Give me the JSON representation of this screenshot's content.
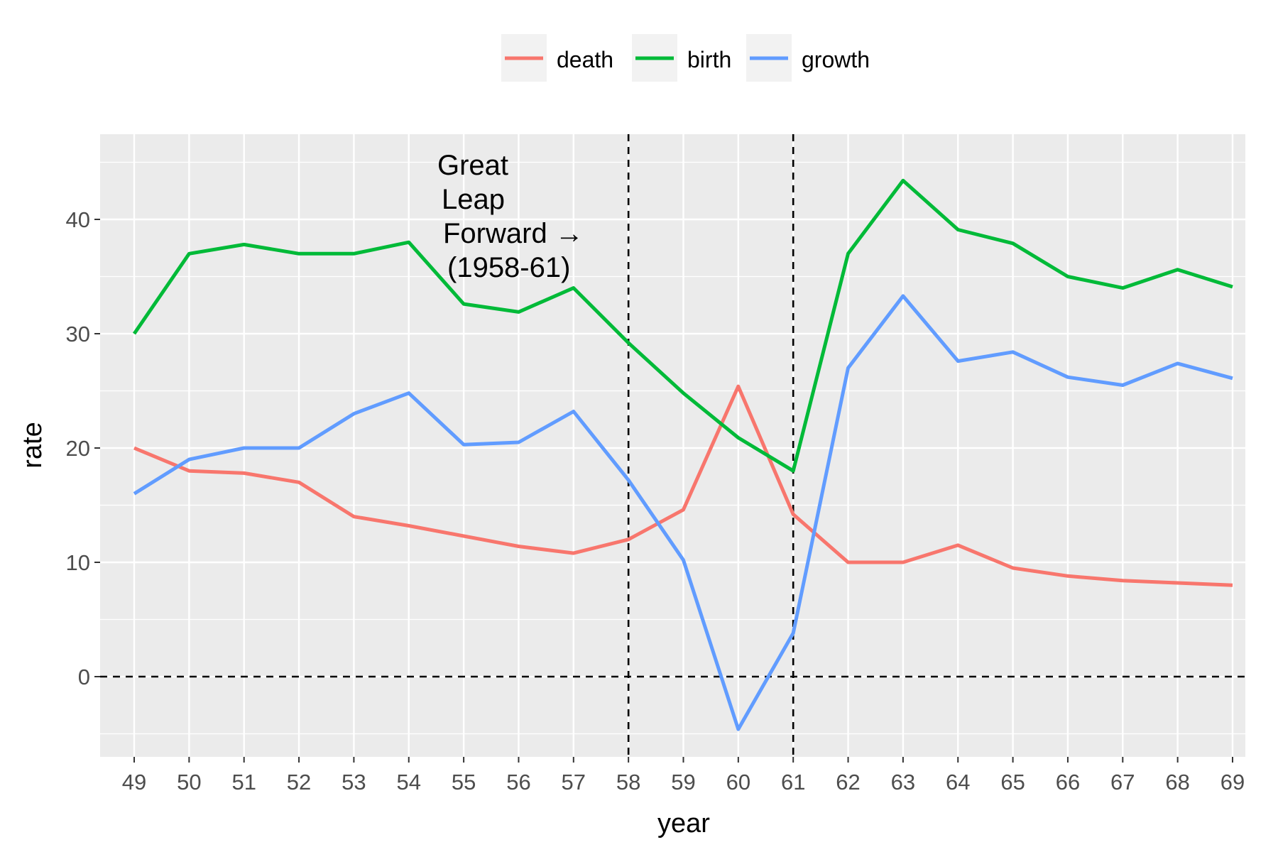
{
  "chart_data": {
    "type": "line",
    "title": "",
    "xlabel": "year",
    "ylabel": "rate",
    "categories": [
      "49",
      "50",
      "51",
      "52",
      "53",
      "54",
      "55",
      "56",
      "57",
      "58",
      "59",
      "60",
      "61",
      "62",
      "63",
      "64",
      "65",
      "66",
      "67",
      "68",
      "69"
    ],
    "ylim": [
      -7,
      47
    ],
    "yticks": [
      0,
      10,
      20,
      30,
      40
    ],
    "grid": true,
    "legend_position": "top",
    "series": [
      {
        "name": "death",
        "color": "#F8766D",
        "values": [
          20,
          18,
          17.8,
          17,
          14,
          13.2,
          12.3,
          11.4,
          10.8,
          12,
          14.6,
          25.4,
          14.2,
          10,
          10,
          11.5,
          9.5,
          8.8,
          8.4,
          8.2,
          8
        ]
      },
      {
        "name": "birth",
        "color": "#00BA38",
        "values": [
          30,
          37,
          37.8,
          37,
          37,
          38,
          32.6,
          31.9,
          34,
          29.2,
          24.8,
          20.9,
          18,
          37,
          43.4,
          39.1,
          37.9,
          35,
          34,
          35.6,
          34.1
        ]
      },
      {
        "name": "growth",
        "color": "#619CFF",
        "values": [
          16,
          19,
          20,
          20,
          23,
          24.8,
          20.3,
          20.5,
          23.2,
          17.2,
          10.2,
          -4.6,
          3.8,
          27,
          33.3,
          27.6,
          28.4,
          26.2,
          25.5,
          27.4,
          26.1
        ]
      }
    ],
    "reference_lines": {
      "vertical_at": [
        "58",
        "61"
      ],
      "horizontal_at": [
        0
      ]
    },
    "annotation": {
      "lines": [
        "Great",
        "Leap",
        "Forward →",
        "(1958-61)"
      ]
    }
  }
}
